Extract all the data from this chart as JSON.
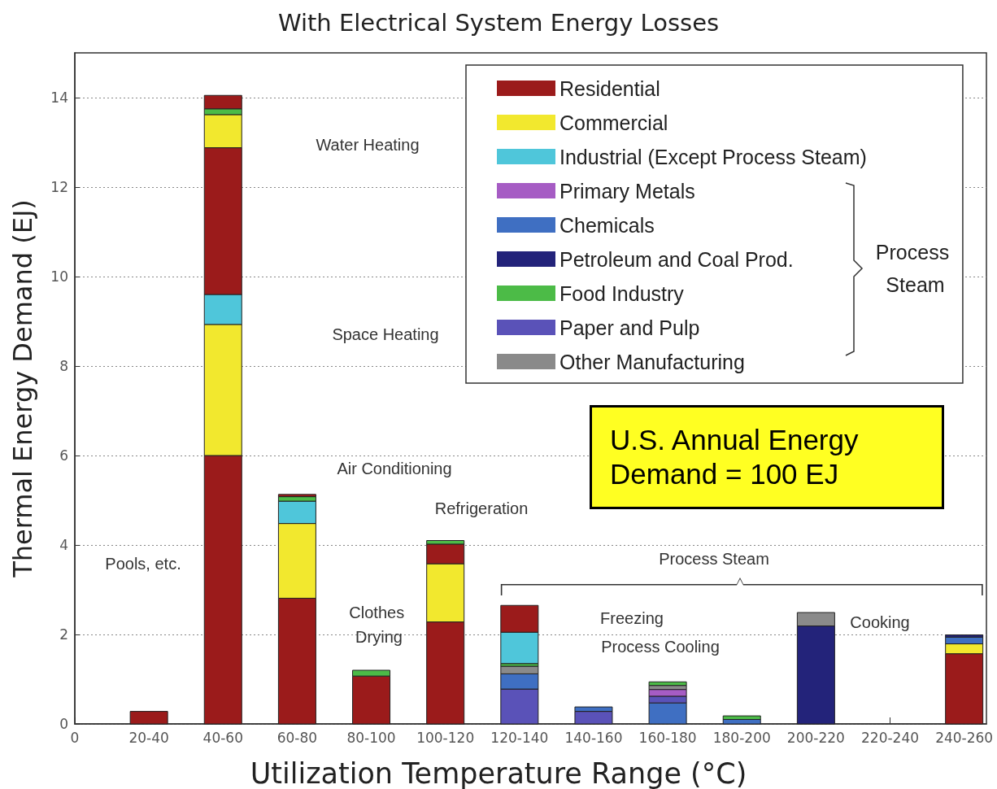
{
  "chart_data": {
    "type": "bar",
    "stacked": true,
    "title": "With Electrical System Energy Losses",
    "xlabel": "Utilization Temperature Range (°C)",
    "ylabel": "Thermal Energy Demand (EJ)",
    "categories": [
      "0",
      "20-40",
      "40-60",
      "60-80",
      "80-100",
      "100-120",
      "120-140",
      "140-160",
      "160-180",
      "180-200",
      "200-220",
      "220-240",
      "240-260"
    ],
    "ylim": [
      0,
      15
    ],
    "yticks": [
      0,
      2,
      4,
      6,
      8,
      10,
      12,
      14
    ],
    "grid": "y",
    "legend": "top right",
    "series": [
      {
        "name": "Residential",
        "color": "#9b1b1b",
        "values": [
          null,
          0.28,
          6.0,
          2.81,
          1.07,
          2.28,
          null,
          null,
          null,
          null,
          null,
          null,
          1.57
        ]
      },
      {
        "name": "Commercial",
        "color": "#f2e82e",
        "values": [
          null,
          null,
          2.93,
          1.67,
          null,
          1.3,
          null,
          null,
          null,
          null,
          null,
          null,
          0.22
        ]
      },
      {
        "name": "Industrial (Except Process Steam)",
        "color": "#4fc6da",
        "values": [
          null,
          null,
          0.67,
          0.5,
          null,
          null,
          null,
          null,
          null,
          null,
          null,
          null,
          null
        ]
      },
      {
        "color": "#3f6fc2",
        "values": [
          null,
          null,
          null,
          null,
          null,
          null,
          null,
          null,
          0.47,
          0.1,
          null,
          null,
          null
        ]
      },
      {
        "color": "#5a52b8",
        "values": [
          null,
          null,
          null,
          null,
          null,
          null,
          0.78,
          0.28,
          0.15,
          null,
          null,
          null,
          null
        ]
      },
      {
        "name": "Primary Metals",
        "color": "#a65cc4",
        "values": [
          null,
          null,
          null,
          null,
          null,
          null,
          null,
          null,
          0.15,
          null,
          null,
          null,
          null
        ]
      },
      {
        "name": "Chemicals",
        "color": "#3f6fc2",
        "values": [
          null,
          null,
          null,
          null,
          null,
          null,
          0.34,
          0.1,
          null,
          null,
          null,
          null,
          0.15
        ]
      },
      {
        "name": "Petroleum and Coal Prod.",
        "color": "#23237a",
        "values": [
          null,
          null,
          null,
          null,
          null,
          null,
          null,
          null,
          null,
          null,
          2.19,
          null,
          0.05
        ]
      },
      {
        "color": "#8a8a8a",
        "values": [
          null,
          null,
          null,
          null,
          null,
          null,
          0.17,
          null,
          0.09,
          null,
          null,
          null,
          null
        ]
      },
      {
        "color": "#9b1b1b",
        "values": [
          null,
          null,
          3.28,
          null,
          null,
          0.44,
          null,
          null,
          null,
          null,
          null,
          null,
          null
        ]
      },
      {
        "color": "#f2e82e",
        "values": [
          null,
          null,
          0.74,
          null,
          null,
          null,
          null,
          null,
          null,
          null,
          null,
          null,
          null
        ]
      },
      {
        "name": "Food Industry",
        "color": "#4cbb47",
        "values": [
          null,
          null,
          0.13,
          0.1,
          0.13,
          0.08,
          0.06,
          null,
          0.08,
          0.08,
          null,
          null,
          null
        ]
      },
      {
        "color": "#4fc6da",
        "values": [
          null,
          null,
          null,
          null,
          null,
          null,
          0.7,
          null,
          null,
          null,
          null,
          null,
          null
        ]
      },
      {
        "color": "#9b1b1b",
        "values": [
          null,
          null,
          0.3,
          0.05,
          null,
          null,
          0.6,
          null,
          null,
          null,
          null,
          null,
          null
        ]
      },
      {
        "name": "Paper and Pulp",
        "color": "#5a52b8",
        "values": [
          null,
          null,
          null,
          null,
          null,
          null,
          null,
          null,
          null,
          null,
          null,
          null,
          null
        ]
      },
      {
        "name": "Other Manufacturing",
        "color": "#8a8a8a",
        "values": [
          null,
          null,
          null,
          null,
          null,
          null,
          null,
          null,
          null,
          null,
          0.3,
          null,
          null
        ]
      }
    ],
    "annotations": [
      "Water Heating",
      "Space Heating",
      "Air Conditioning",
      "Pools, etc.",
      "Clothes Drying",
      "Refrigeration",
      "Process Steam",
      "Freezing",
      "Process Cooling",
      "Cooking",
      "Process Steam",
      "U.S. Annual Energy Demand = 100 EJ"
    ]
  }
}
